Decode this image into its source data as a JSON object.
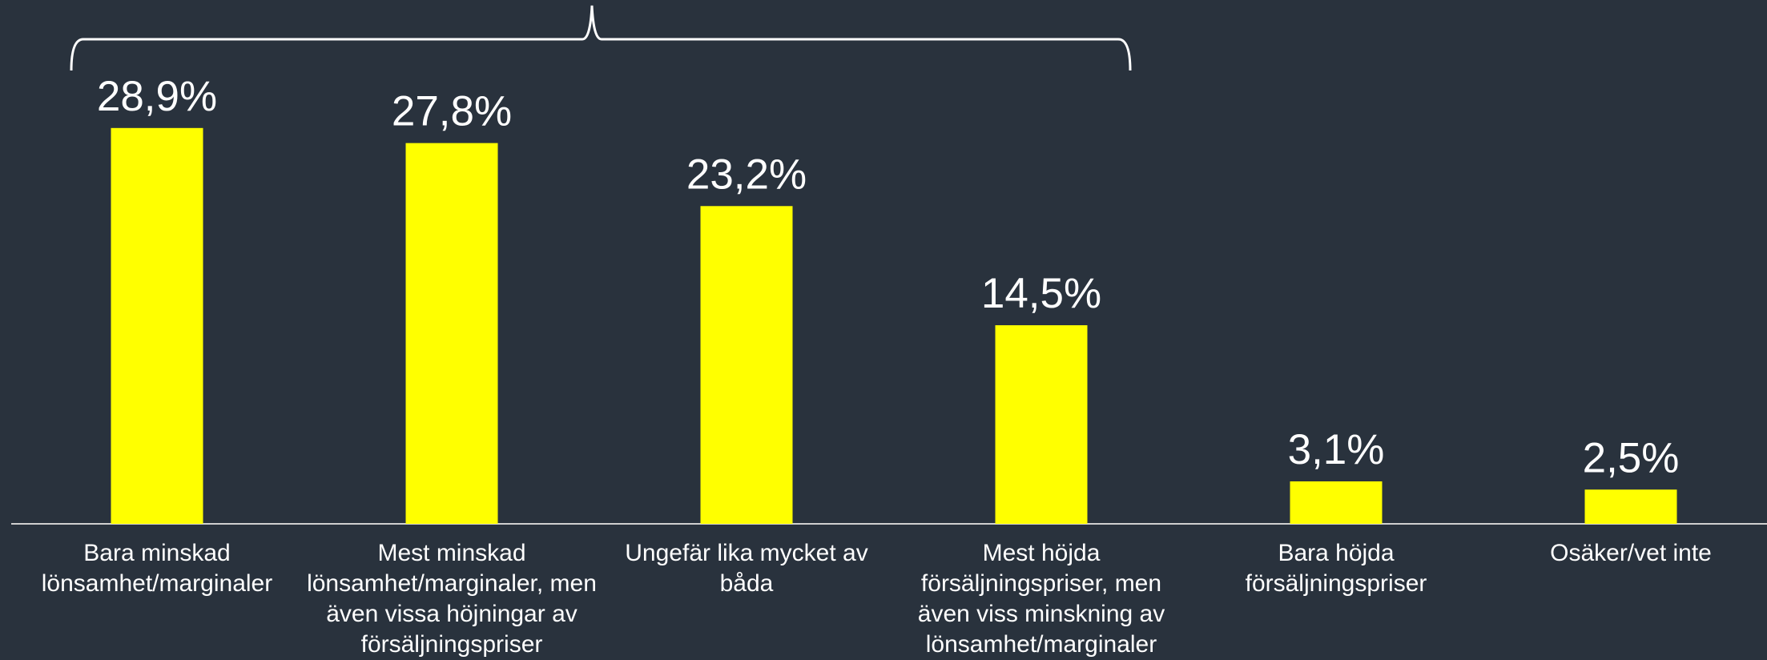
{
  "chart_data": {
    "type": "bar",
    "categories": [
      "Bara minskad lönsamhet/marginaler",
      "Mest minskad lönsamhet/marginaler, men även vissa höjningar av försäljningspriser",
      "Ungefär lika mycket av båda",
      "Mest höjda försäljningspriser, men även viss minskning av lönsamhet/marginaler",
      "Bara höjda försäljningspriser",
      "Osäker/vet inte"
    ],
    "values": [
      28.9,
      27.8,
      23.2,
      14.5,
      3.1,
      2.5
    ],
    "value_labels": [
      "28,9%",
      "27,8%",
      "23,2%",
      "14,5%",
      "3,1%",
      "2,5%"
    ],
    "color": "#ffff00"
  }
}
